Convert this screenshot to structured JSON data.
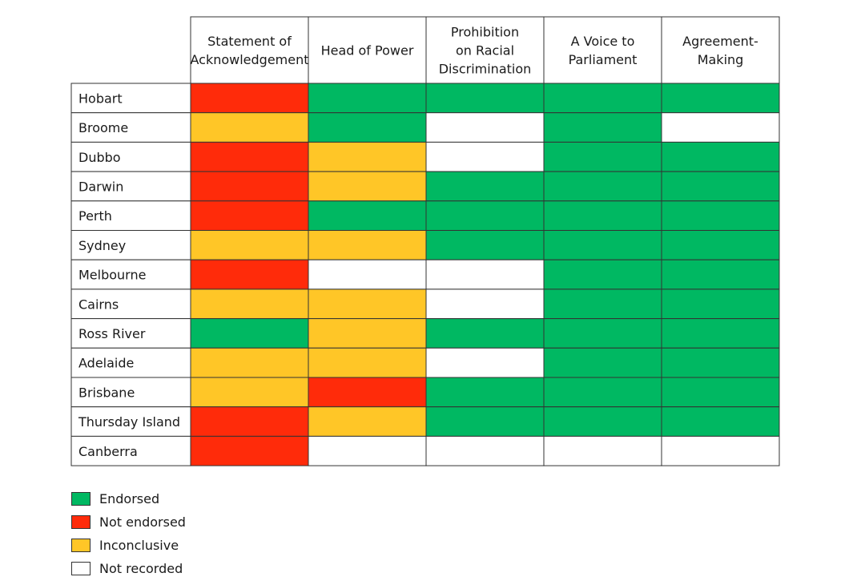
{
  "chart_data": {
    "type": "table",
    "columns": [
      [
        "Statement of",
        "Acknowledgement"
      ],
      [
        "Head of Power"
      ],
      [
        "Prohibition",
        "on Racial",
        "Discrimination"
      ],
      [
        "A Voice to",
        "Parliament"
      ],
      [
        "Agreement-",
        "Making"
      ]
    ],
    "rows": [
      {
        "name": "Hobart",
        "values": [
          "not_endorsed",
          "endorsed",
          "endorsed",
          "endorsed",
          "endorsed"
        ]
      },
      {
        "name": "Broome",
        "values": [
          "inconclusive",
          "endorsed",
          "not_recorded",
          "endorsed",
          "not_recorded"
        ]
      },
      {
        "name": "Dubbo",
        "values": [
          "not_endorsed",
          "inconclusive",
          "not_recorded",
          "endorsed",
          "endorsed"
        ]
      },
      {
        "name": "Darwin",
        "values": [
          "not_endorsed",
          "inconclusive",
          "endorsed",
          "endorsed",
          "endorsed"
        ]
      },
      {
        "name": "Perth",
        "values": [
          "not_endorsed",
          "endorsed",
          "endorsed",
          "endorsed",
          "endorsed"
        ]
      },
      {
        "name": "Sydney",
        "values": [
          "inconclusive",
          "inconclusive",
          "endorsed",
          "endorsed",
          "endorsed"
        ]
      },
      {
        "name": "Melbourne",
        "values": [
          "not_endorsed",
          "not_recorded",
          "not_recorded",
          "endorsed",
          "endorsed"
        ]
      },
      {
        "name": "Cairns",
        "values": [
          "inconclusive",
          "inconclusive",
          "not_recorded",
          "endorsed",
          "endorsed"
        ]
      },
      {
        "name": "Ross River",
        "values": [
          "endorsed",
          "inconclusive",
          "endorsed",
          "endorsed",
          "endorsed"
        ]
      },
      {
        "name": "Adelaide",
        "values": [
          "inconclusive",
          "inconclusive",
          "not_recorded",
          "endorsed",
          "endorsed"
        ]
      },
      {
        "name": "Brisbane",
        "values": [
          "inconclusive",
          "not_endorsed",
          "endorsed",
          "endorsed",
          "endorsed"
        ]
      },
      {
        "name": "Thursday Island",
        "values": [
          "not_endorsed",
          "inconclusive",
          "endorsed",
          "endorsed",
          "endorsed"
        ]
      },
      {
        "name": "Canberra",
        "values": [
          "not_endorsed",
          "not_recorded",
          "not_recorded",
          "not_recorded",
          "not_recorded"
        ]
      }
    ],
    "legend": [
      {
        "key": "endorsed",
        "label": "Endorsed",
        "color": "#00b862"
      },
      {
        "key": "not_endorsed",
        "label": "Not endorsed",
        "color": "#ff2b0a"
      },
      {
        "key": "inconclusive",
        "label": "Inconclusive",
        "color": "#ffc627"
      },
      {
        "key": "not_recorded",
        "label": "Not recorded",
        "color": "#ffffff"
      }
    ]
  }
}
